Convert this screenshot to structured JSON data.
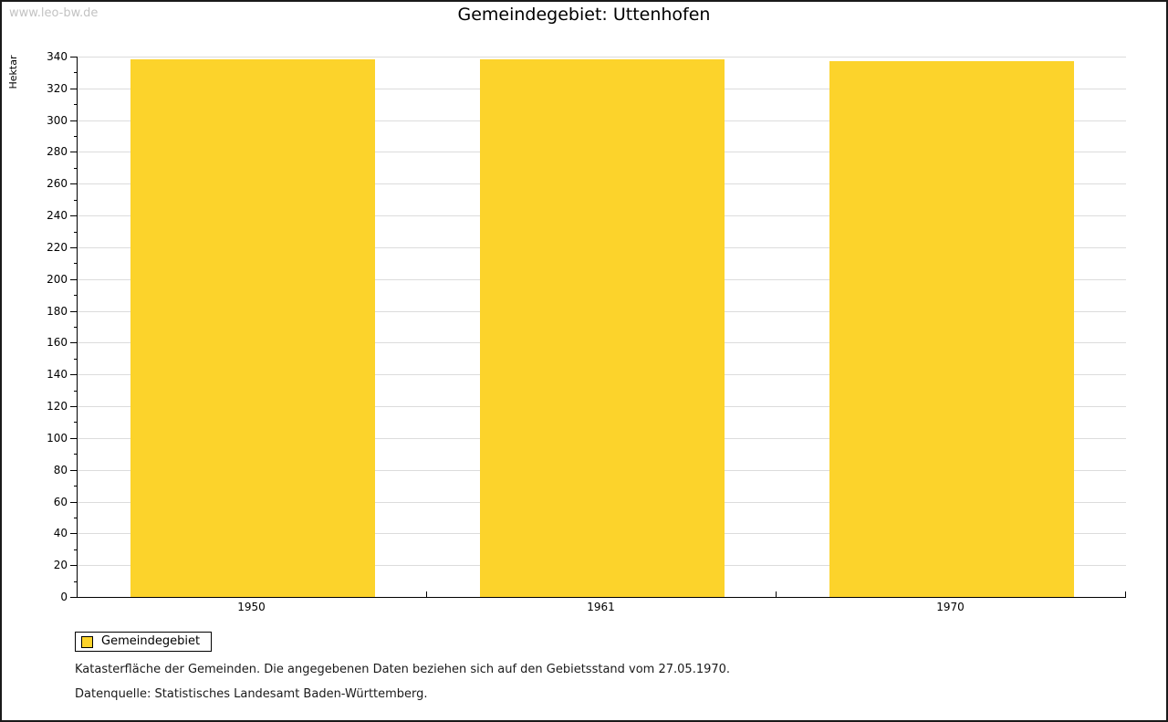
{
  "watermark": "www.leo-bw.de",
  "header": {
    "title": "Gemeindegebiet: Uttenhofen"
  },
  "chart_data": {
    "type": "bar",
    "title": "Gemeindegebiet: Uttenhofen",
    "categories": [
      "1950",
      "1961",
      "1970"
    ],
    "series": [
      {
        "name": "Gemeindegebiet",
        "color": "#FCD32B",
        "values": [
          338,
          338,
          337
        ]
      }
    ],
    "xlabel": "",
    "ylabel": "Hektar",
    "ylim": [
      0,
      340
    ],
    "ytick_step": 20,
    "minor_tick_step": 10,
    "grid": true,
    "grid_color": "#DCDCDC",
    "legend_position": "bottom-left"
  },
  "legend": {
    "items": [
      {
        "label": "Gemeindegebiet",
        "color": "#FCD32B"
      }
    ]
  },
  "footnotes": [
    "Katasterfläche der Gemeinden. Die angegebenen Daten beziehen sich auf den Gebietsstand vom 27.05.1970.",
    "Datenquelle: Statistisches Landesamt Baden-Württemberg."
  ],
  "colors": {
    "bar": "#FCD32B",
    "grid": "#DCDCDC",
    "axis": "#000000",
    "watermark": "#C3C3C3",
    "background": "#FFFFFF"
  }
}
